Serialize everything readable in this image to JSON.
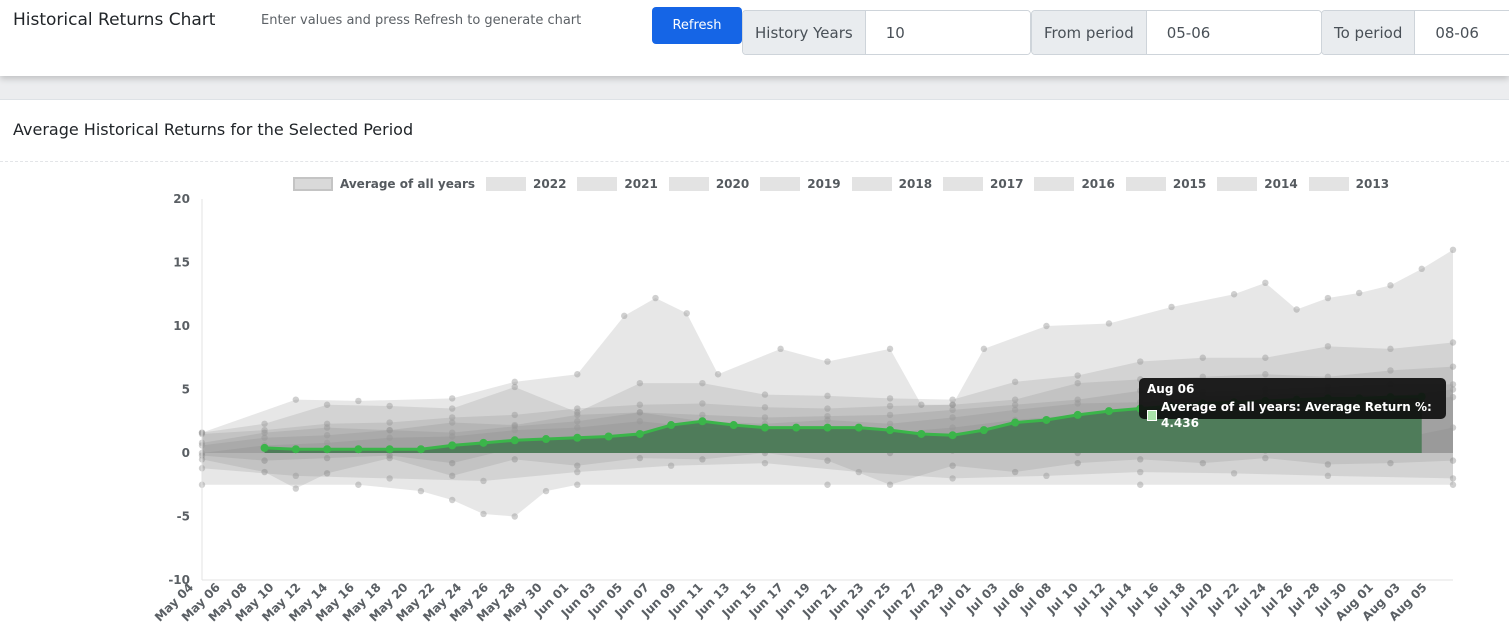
{
  "header": {
    "title": "Historical Returns Chart",
    "hint": "Enter values and press Refresh to generate chart",
    "refresh_label": "Refresh",
    "history_years_label": "History Years",
    "history_years_value": "10",
    "from_period_label": "From period",
    "from_period_value": "05-06",
    "to_period_label": "To period",
    "to_period_value": "08-06"
  },
  "card": {
    "title": "Average Historical Returns for the Selected Period"
  },
  "colors": {
    "accent": "#1565e6",
    "average_line": "#3bb54a",
    "average_fill": "#4b7a56",
    "year_fill": "#bdbdbd"
  },
  "tooltip": {
    "title": "Aug 06",
    "text": "Average of all years: Average Return %: 4.436"
  },
  "chart_data": {
    "type": "area",
    "title": "Average Historical Returns for the Selected Period",
    "ylim": [
      -10,
      20
    ],
    "yticks": [
      20,
      15,
      10,
      5,
      0,
      -5,
      -10
    ],
    "legend_position": "top",
    "legend": [
      "Average of all years",
      "2022",
      "2021",
      "2020",
      "2019",
      "2018",
      "2017",
      "2016",
      "2015",
      "2014",
      "2013"
    ],
    "x_tick_labels": [
      "May 04",
      "May 06",
      "May 08",
      "May 10",
      "May 12",
      "May 14",
      "May 16",
      "May 18",
      "May 20",
      "May 22",
      "May 24",
      "May 26",
      "May 28",
      "May 30",
      "Jun 01",
      "Jun 03",
      "Jun 05",
      "Jun 07",
      "Jun 09",
      "Jun 11",
      "Jun 13",
      "Jun 15",
      "Jun 17",
      "Jun 19",
      "Jun 21",
      "Jun 23",
      "Jun 25",
      "Jun 27",
      "Jun 29",
      "Jul 01",
      "Jul 03",
      "Jul 06",
      "Jul 08",
      "Jul 10",
      "Jul 12",
      "Jul 14",
      "Jul 16",
      "Jul 18",
      "Jul 20",
      "Jul 22",
      "Jul 24",
      "Jul 26",
      "Jul 28",
      "Jul 30",
      "Aug 01",
      "Aug 03",
      "Aug 05"
    ],
    "series": [
      {
        "name": "Average of all years",
        "points": [
          [
            4,
            0.4
          ],
          [
            6,
            0.3
          ],
          [
            8,
            0.3
          ],
          [
            10,
            0.3
          ],
          [
            12,
            0.3
          ],
          [
            14,
            0.3
          ],
          [
            16,
            0.6
          ],
          [
            18,
            0.8
          ],
          [
            20,
            1.0
          ],
          [
            22,
            1.1
          ],
          [
            24,
            1.2
          ],
          [
            26,
            1.3
          ],
          [
            28,
            1.5
          ],
          [
            30,
            2.2
          ],
          [
            32,
            2.5
          ],
          [
            34,
            2.2
          ],
          [
            36,
            2.0
          ],
          [
            38,
            2.0
          ],
          [
            40,
            2.0
          ],
          [
            42,
            2.0
          ],
          [
            44,
            1.8
          ],
          [
            46,
            1.5
          ],
          [
            48,
            1.4
          ],
          [
            50,
            1.8
          ],
          [
            52,
            2.4
          ],
          [
            54,
            2.6
          ],
          [
            56,
            3.0
          ],
          [
            58,
            3.3
          ],
          [
            60,
            3.5
          ],
          [
            62,
            3.7
          ],
          [
            64,
            3.9
          ],
          [
            66,
            4.0
          ],
          [
            68,
            4.1
          ],
          [
            70,
            4.2
          ],
          [
            72,
            4.3
          ],
          [
            74,
            4.3
          ],
          [
            76,
            4.4
          ],
          [
            78,
            4.44
          ]
        ]
      },
      {
        "name": "2022",
        "points": [
          [
            0,
            1.6
          ],
          [
            6,
            4.2
          ],
          [
            10,
            4.1
          ],
          [
            16,
            4.3
          ],
          [
            20,
            5.6
          ],
          [
            24,
            6.2
          ],
          [
            27,
            10.8
          ],
          [
            29,
            12.2
          ],
          [
            31,
            11.0
          ],
          [
            33,
            6.2
          ],
          [
            37,
            8.2
          ],
          [
            40,
            7.2
          ],
          [
            44,
            8.2
          ],
          [
            46,
            3.8
          ],
          [
            48,
            3.8
          ],
          [
            50,
            8.2
          ],
          [
            54,
            10.0
          ],
          [
            58,
            10.2
          ],
          [
            62,
            11.5
          ],
          [
            66,
            12.5
          ],
          [
            68,
            13.4
          ],
          [
            70,
            11.3
          ],
          [
            72,
            12.2
          ],
          [
            74,
            12.6
          ],
          [
            76,
            13.2
          ],
          [
            78,
            14.5
          ],
          [
            80,
            16.0
          ]
        ]
      },
      {
        "name": "2021",
        "points": [
          [
            0,
            1.6
          ],
          [
            4,
            2.3
          ],
          [
            8,
            3.8
          ],
          [
            12,
            3.7
          ],
          [
            16,
            3.5
          ],
          [
            20,
            5.2
          ],
          [
            24,
            3.2
          ],
          [
            28,
            5.5
          ],
          [
            32,
            5.5
          ],
          [
            36,
            4.6
          ],
          [
            40,
            4.5
          ],
          [
            44,
            4.3
          ],
          [
            48,
            4.2
          ],
          [
            52,
            5.6
          ],
          [
            56,
            6.1
          ],
          [
            60,
            7.2
          ],
          [
            64,
            7.5
          ],
          [
            68,
            7.5
          ],
          [
            72,
            8.4
          ],
          [
            76,
            8.2
          ],
          [
            80,
            8.7
          ]
        ]
      },
      {
        "name": "2020",
        "points": [
          [
            0,
            1.5
          ],
          [
            4,
            1.8
          ],
          [
            8,
            2.3
          ],
          [
            12,
            2.4
          ],
          [
            16,
            2.8
          ],
          [
            20,
            3.0
          ],
          [
            24,
            3.5
          ],
          [
            28,
            3.8
          ],
          [
            32,
            3.9
          ],
          [
            36,
            3.6
          ],
          [
            40,
            3.5
          ],
          [
            44,
            3.7
          ],
          [
            48,
            3.8
          ],
          [
            52,
            4.2
          ],
          [
            56,
            5.5
          ],
          [
            60,
            5.8
          ],
          [
            64,
            6.0
          ],
          [
            68,
            6.2
          ],
          [
            72,
            6.0
          ],
          [
            76,
            6.5
          ],
          [
            80,
            6.8
          ]
        ]
      },
      {
        "name": "2019",
        "points": [
          [
            0,
            0.8
          ],
          [
            4,
            1.6
          ],
          [
            8,
            2.0
          ],
          [
            12,
            1.8
          ],
          [
            16,
            2.4
          ],
          [
            20,
            2.2
          ],
          [
            24,
            3.0
          ],
          [
            28,
            3.2
          ],
          [
            32,
            3.0
          ],
          [
            36,
            2.8
          ],
          [
            40,
            2.9
          ],
          [
            44,
            3.0
          ],
          [
            48,
            3.4
          ],
          [
            52,
            3.8
          ],
          [
            56,
            4.2
          ],
          [
            60,
            4.9
          ],
          [
            64,
            4.8
          ],
          [
            68,
            5.0
          ],
          [
            72,
            5.2
          ],
          [
            76,
            5.4
          ],
          [
            80,
            5.4
          ]
        ]
      },
      {
        "name": "2018",
        "points": [
          [
            0,
            0.6
          ],
          [
            4,
            1.2
          ],
          [
            8,
            1.4
          ],
          [
            12,
            1.8
          ],
          [
            16,
            1.6
          ],
          [
            20,
            2.1
          ],
          [
            24,
            2.5
          ],
          [
            28,
            3.2
          ],
          [
            32,
            2.5
          ],
          [
            36,
            2.3
          ],
          [
            40,
            2.6
          ],
          [
            44,
            2.3
          ],
          [
            48,
            2.8
          ],
          [
            52,
            3.4
          ],
          [
            56,
            3.9
          ],
          [
            60,
            4.0
          ],
          [
            64,
            4.5
          ],
          [
            68,
            4.6
          ],
          [
            72,
            4.8
          ],
          [
            76,
            4.5
          ],
          [
            80,
            5.0
          ]
        ]
      },
      {
        "name": "2017",
        "points": [
          [
            0,
            0.0
          ],
          [
            4,
            0.6
          ],
          [
            8,
            0.8
          ],
          [
            12,
            1.2
          ],
          [
            16,
            1.3
          ],
          [
            20,
            1.8
          ],
          [
            24,
            2.0
          ],
          [
            28,
            2.5
          ],
          [
            32,
            2.0
          ],
          [
            36,
            1.8
          ],
          [
            40,
            2.0
          ],
          [
            44,
            1.6
          ],
          [
            48,
            2.0
          ],
          [
            52,
            2.6
          ],
          [
            56,
            3.0
          ],
          [
            60,
            3.4
          ],
          [
            64,
            3.8
          ],
          [
            68,
            4.0
          ],
          [
            72,
            3.9
          ],
          [
            76,
            4.2
          ],
          [
            80,
            4.4
          ]
        ]
      },
      {
        "name": "2016",
        "points": [
          [
            0,
            -0.2
          ],
          [
            4,
            -0.6
          ],
          [
            8,
            -0.4
          ],
          [
            12,
            -0.2
          ],
          [
            16,
            -0.8
          ],
          [
            20,
            0.4
          ],
          [
            24,
            0.6
          ],
          [
            28,
            0.4
          ],
          [
            32,
            0.5
          ],
          [
            36,
            0.2
          ],
          [
            40,
            0.3
          ],
          [
            44,
            0.0
          ],
          [
            48,
            0.2
          ],
          [
            52,
            0.3
          ],
          [
            56,
            0.0
          ],
          [
            60,
            0.4
          ],
          [
            64,
            0.6
          ],
          [
            68,
            0.2
          ],
          [
            72,
            0.4
          ],
          [
            76,
            1.0
          ],
          [
            80,
            2.0
          ]
        ]
      },
      {
        "name": "2015",
        "points": [
          [
            0,
            -0.5
          ],
          [
            4,
            -1.5
          ],
          [
            6,
            -2.8
          ],
          [
            8,
            -1.6
          ],
          [
            12,
            -0.4
          ],
          [
            16,
            -1.8
          ],
          [
            20,
            -0.5
          ],
          [
            24,
            -1.0
          ],
          [
            28,
            -0.4
          ],
          [
            32,
            -0.5
          ],
          [
            36,
            0.0
          ],
          [
            40,
            -0.6
          ],
          [
            44,
            -2.5
          ],
          [
            48,
            -1.0
          ],
          [
            52,
            -1.5
          ],
          [
            56,
            -0.8
          ],
          [
            60,
            -0.5
          ],
          [
            64,
            -0.8
          ],
          [
            68,
            -0.4
          ],
          [
            72,
            -0.9
          ],
          [
            76,
            -0.8
          ],
          [
            80,
            -0.6
          ]
        ]
      },
      {
        "name": "2014",
        "points": [
          [
            0,
            -2.5
          ],
          [
            10,
            -2.5
          ],
          [
            14,
            -3.0
          ],
          [
            16,
            -3.7
          ],
          [
            18,
            -4.8
          ],
          [
            20,
            -5.0
          ],
          [
            22,
            -3.0
          ],
          [
            24,
            -2.5
          ],
          [
            40,
            -2.5
          ],
          [
            60,
            -2.5
          ],
          [
            80,
            -2.5
          ]
        ]
      },
      {
        "name": "2013",
        "points": [
          [
            0,
            -1.2
          ],
          [
            6,
            -1.8
          ],
          [
            12,
            -2.0
          ],
          [
            18,
            -2.2
          ],
          [
            24,
            -1.5
          ],
          [
            30,
            -1.0
          ],
          [
            36,
            -0.8
          ],
          [
            42,
            -1.5
          ],
          [
            48,
            -2.0
          ],
          [
            54,
            -1.8
          ],
          [
            60,
            -1.5
          ],
          [
            66,
            -1.6
          ],
          [
            72,
            -1.8
          ],
          [
            80,
            -2.0
          ]
        ]
      }
    ]
  }
}
